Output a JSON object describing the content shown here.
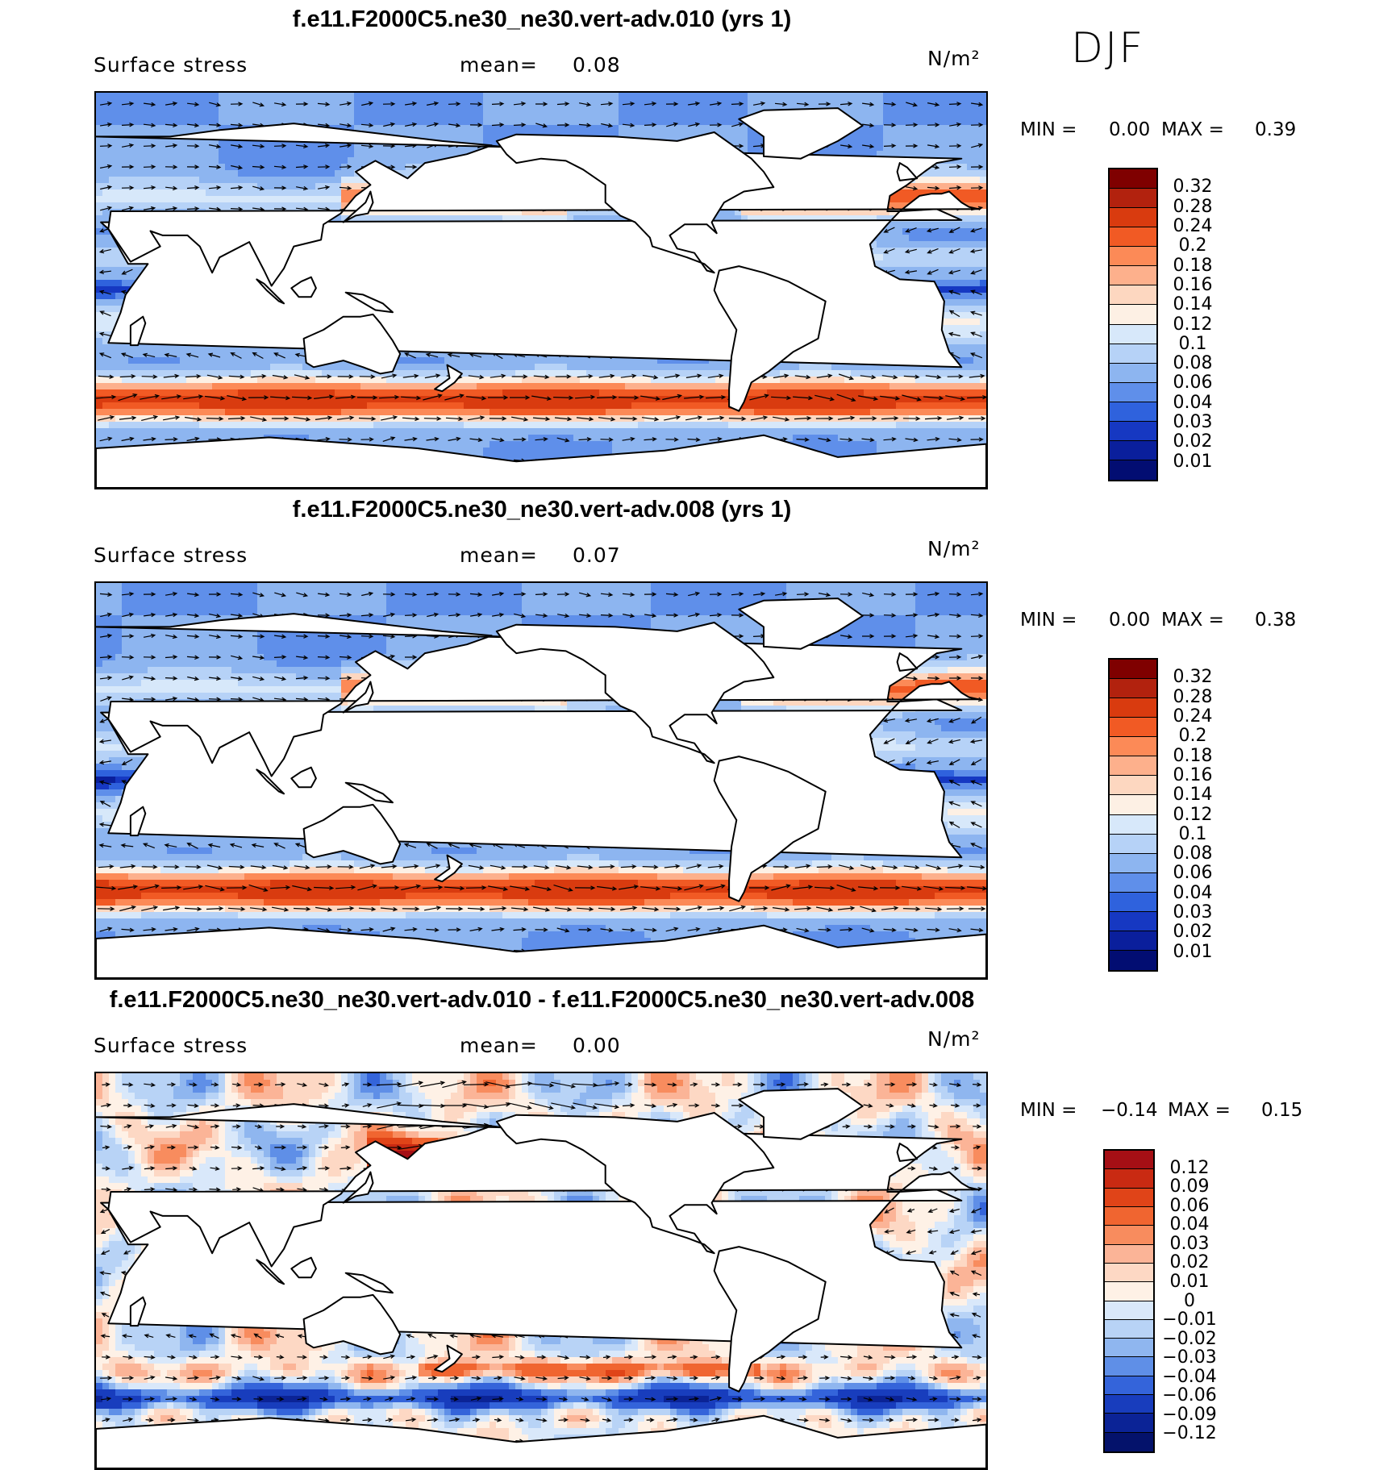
{
  "season": "DJF",
  "panels": [
    {
      "title": "f.e11.F2000C5.ne30_ne30.vert-adv.010 (yrs 1)",
      "variable": "Surface stress",
      "mean_label": "mean=",
      "mean_value": "0.08",
      "units": "N/m²",
      "min_label": "MIN =",
      "min_value": "0.00",
      "max_label": "MAX =",
      "max_value": "0.39",
      "palette": "seq",
      "colorbar_ticks": [
        "0.32",
        "0.28",
        "0.24",
        "0.2",
        "0.18",
        "0.16",
        "0.14",
        "0.12",
        "0.1",
        "0.08",
        "0.06",
        "0.04",
        "0.03",
        "0.02",
        "0.01"
      ]
    },
    {
      "title": "f.e11.F2000C5.ne30_ne30.vert-adv.008 (yrs 1)",
      "variable": "Surface stress",
      "mean_label": "mean=",
      "mean_value": "0.07",
      "units": "N/m²",
      "min_label": "MIN =",
      "min_value": "0.00",
      "max_label": "MAX =",
      "max_value": "0.38",
      "palette": "seq",
      "colorbar_ticks": [
        "0.32",
        "0.28",
        "0.24",
        "0.2",
        "0.18",
        "0.16",
        "0.14",
        "0.12",
        "0.1",
        "0.08",
        "0.06",
        "0.04",
        "0.03",
        "0.02",
        "0.01"
      ]
    },
    {
      "title": "f.e11.F2000C5.ne30_ne30.vert-adv.010 - f.e11.F2000C5.ne30_ne30.vert-adv.008",
      "variable": "Surface stress",
      "mean_label": "mean=",
      "mean_value": "0.00",
      "units": "N/m²",
      "min_label": "MIN =",
      "min_value": "−0.14",
      "max_label": "MAX =",
      "max_value": "0.15",
      "palette": "div",
      "colorbar_ticks": [
        "0.12",
        "0.09",
        "0.06",
        "0.04",
        "0.03",
        "0.02",
        "0.01",
        "0",
        "−0.01",
        "−0.02",
        "−0.03",
        "−0.04",
        "−0.06",
        "−0.09",
        "−0.12"
      ]
    }
  ],
  "colors": {
    "seq": [
      "#7f0000",
      "#b2220e",
      "#d93b0f",
      "#f15a24",
      "#fc8a57",
      "#fdb08c",
      "#fdd7c0",
      "#fdf0e4",
      "#d7e8fa",
      "#b6d2f7",
      "#8db5f0",
      "#5f8fea",
      "#2f62dd",
      "#1638c2",
      "#0a1f9c",
      "#020d72"
    ],
    "div": [
      "#a50f15",
      "#c92a12",
      "#e04418",
      "#f06530",
      "#f88c5e",
      "#fbb497",
      "#fdd8c4",
      "#fef1e6",
      "#d9e8fa",
      "#b8d3f6",
      "#8fb6ef",
      "#5f8fe7",
      "#3464da",
      "#183dbd",
      "#0b2396",
      "#04126b"
    ],
    "land": "#ffffff",
    "outline": "#000000"
  }
}
